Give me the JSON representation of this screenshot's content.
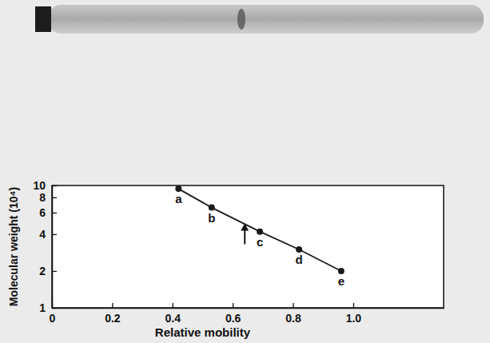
{
  "chart_data": {
    "type": "line",
    "x_label": "Relative mobility",
    "y_label": "Molecular weight (10⁴)",
    "x": [
      0.42,
      0.53,
      0.69,
      0.82,
      0.96
    ],
    "values": [
      9.4,
      6.6,
      4.2,
      3.0,
      2.0
    ],
    "point_labels": [
      "a",
      "b",
      "c",
      "d",
      "e"
    ],
    "arrow": {
      "x": 0.64,
      "y": 4.9
    },
    "marker": "circle",
    "color": "#1a1a1a",
    "log": "y",
    "grid": false,
    "xlim": [
      0,
      1.3
    ],
    "xticks": [
      0,
      0.2,
      0.4,
      0.6,
      0.8,
      {
        "value": 1,
        "label": "1.0"
      }
    ],
    "ylim": [
      1,
      10
    ],
    "yticks": [
      1,
      2,
      4,
      6,
      8,
      10
    ]
  }
}
